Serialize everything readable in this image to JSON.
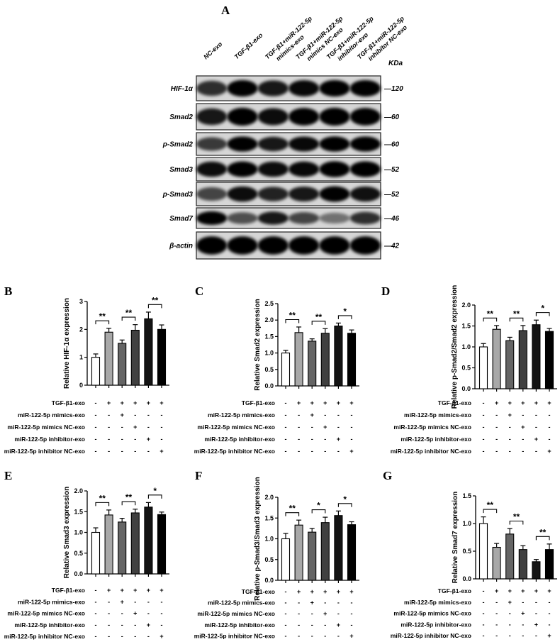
{
  "panel_a": {
    "letter": "A",
    "kda_label": "KDa",
    "lanes": [
      [
        "NC-exo"
      ],
      [
        "TGF-β1-exo"
      ],
      [
        "TGF-β1+miR-122-5p",
        "mimics-exo"
      ],
      [
        "TGF-β1+miR-122-5p",
        "mimics NC-exo"
      ],
      [
        "TGF-β1+miR-122-5p",
        "inhibitor-exo"
      ],
      [
        "TGF-β1+miR-122-5p",
        "inhibitor NC-exo"
      ]
    ],
    "rows": [
      {
        "protein": "HIF-1α",
        "kda": "—120",
        "band_intensity": [
          0.75,
          0.95,
          0.85,
          0.92,
          0.95,
          0.95
        ]
      },
      {
        "protein": "Smad2",
        "kda": "—60",
        "band_intensity": [
          0.85,
          1,
          0.9,
          0.95,
          1,
          0.95
        ]
      },
      {
        "protein": "p-Smad2",
        "kda": "—60",
        "band_intensity": [
          0.7,
          0.95,
          0.85,
          0.92,
          0.97,
          0.95
        ]
      },
      {
        "protein": "Smad3",
        "kda": "—52",
        "band_intensity": [
          0.9,
          0.95,
          0.9,
          0.92,
          1,
          0.97
        ]
      },
      {
        "protein": "p-Smad3",
        "kda": "—52",
        "band_intensity": [
          0.65,
          0.9,
          0.8,
          0.85,
          0.95,
          0.88
        ]
      },
      {
        "protein": "Smad7",
        "kda": "—46",
        "band_intensity": [
          0.95,
          0.6,
          0.85,
          0.65,
          0.45,
          0.75
        ]
      },
      {
        "protein": "β-actin",
        "kda": "—42",
        "band_intensity": [
          1,
          1,
          1,
          1,
          1,
          1
        ]
      }
    ]
  },
  "conditions": {
    "labels": [
      "TGF-β1-exo",
      "miR-122-5p mimics-exo",
      "miR-122-5p mimics NC-exo",
      "miR-122-5p inhibitor-exo",
      "miR-122-5p inhibitor NC-exo"
    ],
    "signs": [
      [
        "-",
        "+",
        "+",
        "+",
        "+",
        "+"
      ],
      [
        "-",
        "-",
        "+",
        "-",
        "-",
        "-"
      ],
      [
        "-",
        "-",
        "-",
        "+",
        "-",
        "-"
      ],
      [
        "-",
        "-",
        "-",
        "-",
        "+",
        "-"
      ],
      [
        "-",
        "-",
        "-",
        "-",
        "-",
        "+"
      ]
    ]
  },
  "bar_colors": [
    "#ffffff",
    "#a8a8a8",
    "#656565",
    "#404040",
    "#141414",
    "#000000"
  ],
  "chart_data": [
    {
      "panel": "B",
      "type": "bar",
      "ylabel": "Relative HIF-1α expression",
      "ylim": [
        0,
        3
      ],
      "yticks": [
        "0",
        "1",
        "2",
        "3"
      ],
      "values": [
        1.0,
        1.9,
        1.5,
        1.97,
        2.38,
        2.0
      ],
      "errors": [
        0.12,
        0.14,
        0.12,
        0.2,
        0.24,
        0.16
      ],
      "significance": [
        "**",
        "**",
        "**"
      ]
    },
    {
      "panel": "C",
      "type": "bar",
      "ylabel": "Relative Smad2 expression",
      "ylim": [
        0,
        2.5
      ],
      "yticks": [
        "0.0",
        "0.5",
        "1.0",
        "1.5",
        "2.0",
        "2.5"
      ],
      "values": [
        1.0,
        1.62,
        1.36,
        1.6,
        1.82,
        1.6
      ],
      "errors": [
        0.08,
        0.17,
        0.07,
        0.14,
        0.09,
        0.1
      ],
      "significance": [
        "**",
        "**",
        "*"
      ]
    },
    {
      "panel": "D",
      "type": "bar",
      "ylabel": "Relative p-Smad2/Smad2 expression",
      "ylim": [
        0,
        2
      ],
      "yticks": [
        "0.0",
        "0.5",
        "1.0",
        "1.5",
        "2.0"
      ],
      "values": [
        1.0,
        1.42,
        1.15,
        1.39,
        1.53,
        1.37
      ],
      "errors": [
        0.08,
        0.09,
        0.08,
        0.12,
        0.11,
        0.07
      ],
      "significance": [
        "**",
        "**",
        "*"
      ]
    },
    {
      "panel": "E",
      "type": "bar",
      "ylabel": "Relative Smad3 expression",
      "ylim": [
        0,
        2
      ],
      "yticks": [
        "0.0",
        "0.5",
        "1.0",
        "1.5",
        "2.0"
      ],
      "values": [
        1.0,
        1.42,
        1.25,
        1.47,
        1.61,
        1.43
      ],
      "errors": [
        0.11,
        0.12,
        0.09,
        0.09,
        0.11,
        0.06
      ],
      "significance": [
        "**",
        "**",
        "*"
      ]
    },
    {
      "panel": "F",
      "type": "bar",
      "ylabel": "Relative p-Smad3/Smad3 expression",
      "ylim": [
        0,
        2
      ],
      "yticks": [
        "0.0",
        "0.5",
        "1.0",
        "1.5",
        "2.0"
      ],
      "values": [
        1.0,
        1.33,
        1.16,
        1.39,
        1.56,
        1.34
      ],
      "errors": [
        0.13,
        0.12,
        0.09,
        0.13,
        0.11,
        0.07
      ],
      "significance": [
        "**",
        "*",
        "*"
      ]
    },
    {
      "panel": "G",
      "type": "bar",
      "ylabel": "Relative Smad7 expression",
      "ylim": [
        0,
        1.5
      ],
      "yticks": [
        "0.0",
        "0.5",
        "1.0",
        "1.5"
      ],
      "values": [
        1.0,
        0.57,
        0.81,
        0.53,
        0.31,
        0.53
      ],
      "errors": [
        0.12,
        0.07,
        0.1,
        0.07,
        0.04,
        0.1
      ],
      "significance": [
        "**",
        "**",
        "**"
      ]
    }
  ]
}
